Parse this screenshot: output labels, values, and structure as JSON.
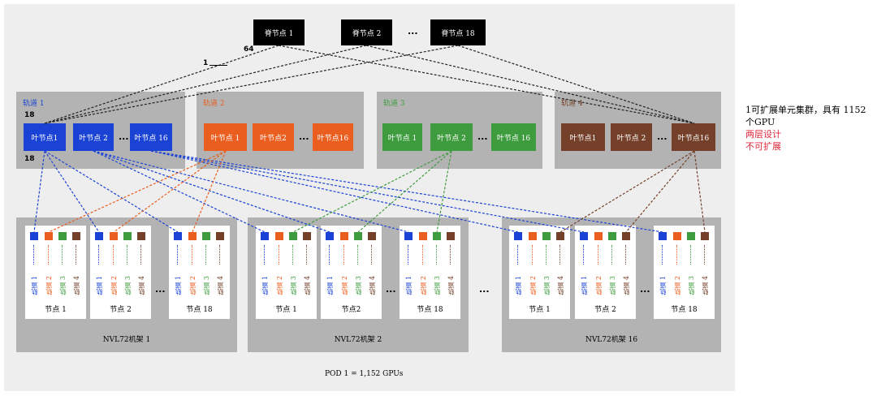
{
  "colors": {
    "rail1": "#1a43d6",
    "rail2": "#ea5e1f",
    "rail3": "#3e9c3e",
    "rail4": "#74402a",
    "spine": "#000000",
    "note_red": "#e0283c"
  },
  "spines": [
    "脊节点 1",
    "脊节点 2",
    "脊节点 18"
  ],
  "ellipsis": "...",
  "link_labels": {
    "top": "64",
    "left": "1",
    "leaf_top": "18",
    "leaf_bottom": "18"
  },
  "rails": [
    {
      "label": "轨道 1",
      "leaves": [
        "叶节点1",
        "叶节点 2",
        "叶节点 16"
      ]
    },
    {
      "label": "轨道 2",
      "leaves": [
        "叶节点 1",
        "叶节点2",
        "叶节点16"
      ]
    },
    {
      "label": "轨道 3",
      "leaves": [
        "叶节点 1",
        "叶节点 2",
        "叶节点 16"
      ]
    },
    {
      "label": "轨道 4",
      "leaves": [
        "叶节点1",
        "叶节点 2",
        "叶节点16"
      ]
    }
  ],
  "racks": [
    {
      "label": "NVL72机架 1",
      "nodes": [
        "节点 1",
        "节点 2",
        "节点 18"
      ]
    },
    {
      "label": "NVL72机架 2",
      "nodes": [
        "节点 1",
        "节点2",
        "节点 18"
      ]
    },
    {
      "label": "NVL72机架 16",
      "nodes": [
        "节点 1",
        "节点 2",
        "节点 18"
      ]
    }
  ],
  "node_rail_labels": [
    "轨道 1",
    "轨道 2",
    "轨道 3",
    "轨道 4"
  ],
  "pod_label": "POD 1 = 1,152 GPUs",
  "notes": {
    "line1": "1可扩展单元集群，具有 1152",
    "line2": "个GPU",
    "line3": "两层设计",
    "line4": "不可扩展"
  }
}
